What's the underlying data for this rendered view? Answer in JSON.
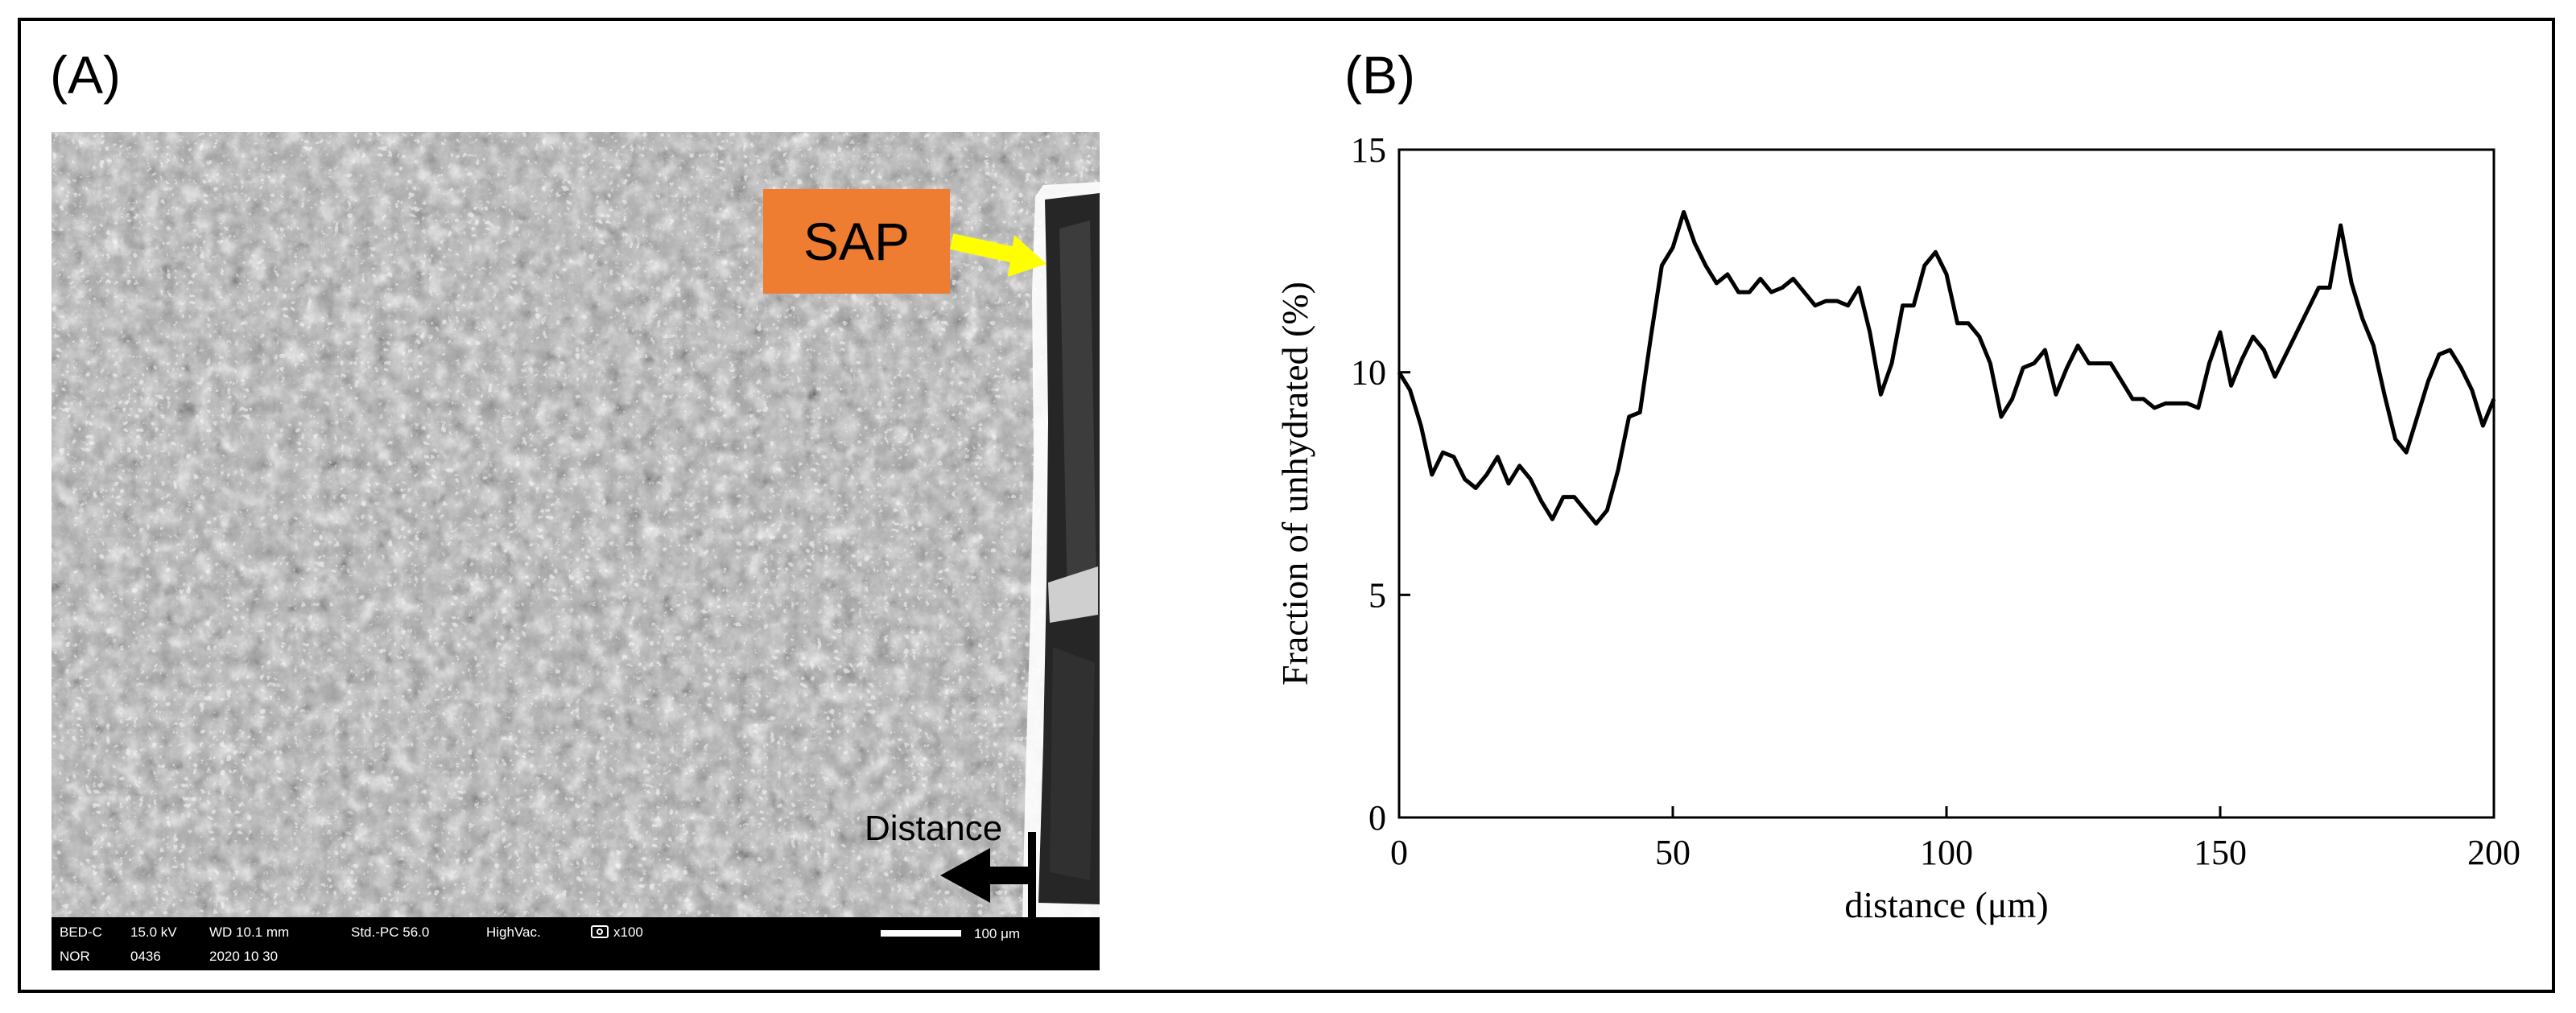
{
  "figure": {
    "panel_a_label": "(A)",
    "panel_b_label": "(B)"
  },
  "micrograph": {
    "callout_label": "SAP",
    "arrow_label": "Distance",
    "info_bar": {
      "row1": [
        "BED-C",
        "15.0 kV",
        "WD 10.1 mm",
        "Std.-PC 56.0",
        "HighVac.",
        "x100"
      ],
      "row2": [
        "NOR",
        "0436",
        "2020 10 30"
      ],
      "scale_bar_label": "100 μm"
    },
    "colors": {
      "callout_fill": "#ee7d31",
      "callout_arrow": "#ffff00",
      "arrow": "#000000"
    }
  },
  "chart_data": {
    "type": "line",
    "title": "",
    "xlabel": "distance (μm)",
    "ylabel": "Fraction of unhydrated (%)",
    "xlim": [
      0,
      200
    ],
    "ylim": [
      0,
      15
    ],
    "xticks": [
      0,
      50,
      100,
      150,
      200
    ],
    "yticks": [
      0,
      5,
      10,
      15
    ],
    "grid": false,
    "series": [
      {
        "name": "unhydrated fraction",
        "color": "#000000",
        "x": [
          0,
          2,
          4,
          6,
          8,
          10,
          12,
          14,
          16,
          18,
          20,
          22,
          24,
          26,
          28,
          30,
          32,
          34,
          36,
          38,
          40,
          42,
          44,
          46,
          48,
          50,
          52,
          54,
          56,
          58,
          60,
          62,
          64,
          66,
          68,
          70,
          72,
          74,
          76,
          78,
          80,
          82,
          84,
          86,
          88,
          90,
          92,
          94,
          96,
          98,
          100,
          102,
          104,
          106,
          108,
          110,
          112,
          114,
          116,
          118,
          120,
          122,
          124,
          126,
          128,
          130,
          132,
          134,
          136,
          138,
          140,
          142,
          144,
          146,
          148,
          150,
          152,
          154,
          156,
          158,
          160,
          162,
          164,
          166,
          168,
          170,
          172,
          174,
          176,
          178,
          180,
          182,
          184,
          186,
          188,
          190,
          192,
          194,
          196,
          198,
          200
        ],
        "values": [
          10.0,
          9.6,
          8.8,
          7.7,
          8.2,
          8.1,
          7.6,
          7.4,
          7.7,
          8.1,
          7.5,
          7.9,
          7.6,
          7.1,
          6.7,
          7.2,
          7.2,
          6.9,
          6.6,
          6.9,
          7.8,
          9.0,
          9.1,
          10.8,
          12.4,
          12.8,
          13.6,
          12.9,
          12.4,
          12.0,
          12.2,
          11.8,
          11.8,
          12.1,
          11.8,
          11.9,
          12.1,
          11.8,
          11.5,
          11.6,
          11.6,
          11.5,
          11.9,
          10.9,
          9.5,
          10.2,
          11.5,
          11.5,
          12.4,
          12.7,
          12.2,
          11.1,
          11.1,
          10.8,
          10.2,
          9.0,
          9.4,
          10.1,
          10.2,
          10.5,
          9.5,
          10.1,
          10.6,
          10.2,
          10.2,
          10.2,
          9.8,
          9.4,
          9.4,
          9.2,
          9.3,
          9.3,
          9.3,
          9.2,
          10.2,
          10.9,
          9.7,
          10.3,
          10.8,
          10.5,
          9.9,
          10.4,
          10.9,
          11.4,
          11.9,
          11.9,
          13.3,
          12.0,
          11.2,
          10.6,
          9.5,
          8.5,
          8.2,
          9.0,
          9.8,
          10.4,
          10.5,
          10.1,
          9.6,
          8.8,
          9.4
        ]
      }
    ]
  }
}
